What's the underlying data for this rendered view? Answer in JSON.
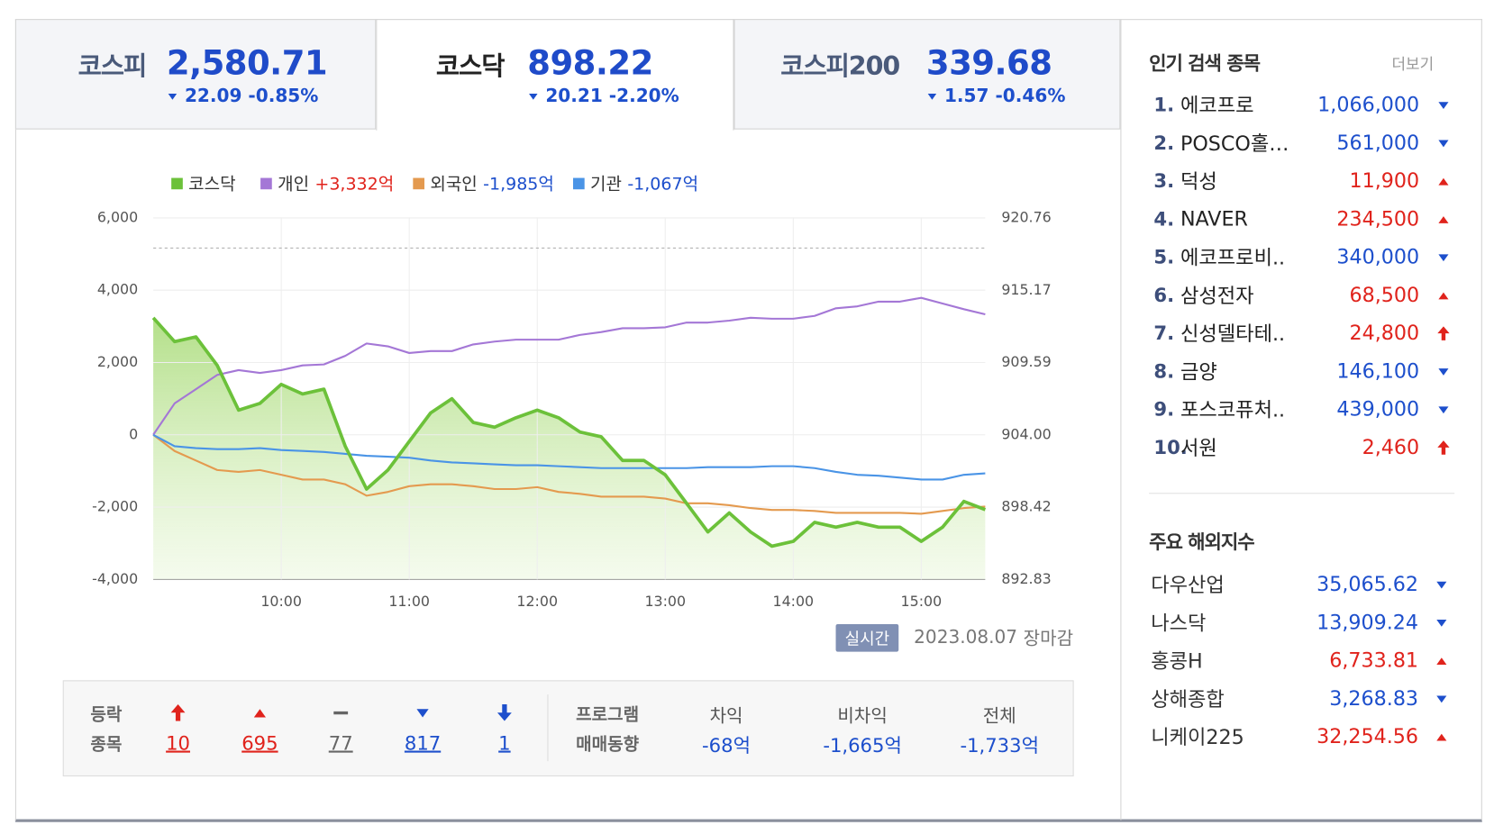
{
  "tabs": [
    {
      "name": "코스피",
      "value": "2,580.71",
      "change": "22.09 -0.85%",
      "direction": "down",
      "active": false
    },
    {
      "name": "코스닥",
      "value": "898.22",
      "change": "20.21 -2.20%",
      "direction": "down",
      "active": true
    },
    {
      "name": "코스피200",
      "value": "339.68",
      "change": "1.57 -0.46%",
      "direction": "down",
      "active": false
    }
  ],
  "chart_data": {
    "type": "line",
    "grid": true,
    "x": [
      "09:00",
      "09:10",
      "09:20",
      "09:30",
      "09:40",
      "09:50",
      "10:00",
      "10:10",
      "10:20",
      "10:30",
      "10:40",
      "10:50",
      "11:00",
      "11:10",
      "11:20",
      "11:30",
      "11:40",
      "11:50",
      "12:00",
      "12:10",
      "12:20",
      "12:30",
      "12:40",
      "12:50",
      "13:00",
      "13:10",
      "13:20",
      "13:30",
      "13:40",
      "13:50",
      "14:00",
      "14:10",
      "14:20",
      "14:30",
      "14:40",
      "14:50",
      "15:00",
      "15:10",
      "15:20",
      "15:30"
    ],
    "xlim": [
      "09:00",
      "15:30"
    ],
    "xticks": [
      "10:00",
      "11:00",
      "12:00",
      "13:00",
      "14:00",
      "15:00"
    ],
    "ylim": [
      -4000,
      6000
    ],
    "yticks": [
      {
        "value": -4000,
        "label": "-4,000"
      },
      {
        "value": -2000,
        "label": "-2,000"
      },
      0,
      {
        "value": 2000,
        "label": "2,000"
      },
      {
        "value": 4000,
        "label": "4,000"
      },
      {
        "value": 6000,
        "label": "6,000"
      }
    ],
    "y2lim": [
      892.83,
      920.76
    ],
    "y2ticks": [
      892.83,
      898.42,
      {
        "value": 904,
        "label": "904.00"
      },
      909.59,
      915.17,
      920.76
    ],
    "reference_line": 918.43,
    "series": [
      {
        "name": "코스닥",
        "color": "#6cc13a",
        "axis": "y2",
        "area": true,
        "values": [
          913.04,
          911.2,
          911.57,
          909.36,
          905.91,
          906.43,
          907.9,
          907.16,
          907.53,
          903.12,
          899.81,
          901.28,
          903.49,
          905.69,
          906.79,
          904.96,
          904.59,
          905.32,
          905.91,
          905.32,
          904.22,
          903.85,
          902.02,
          902.02,
          900.91,
          898.71,
          896.5,
          897.97,
          896.5,
          895.4,
          895.77,
          897.24,
          896.87,
          897.24,
          896.87,
          896.87,
          895.77,
          896.87,
          898.86,
          898.22
        ]
      },
      {
        "name": "개인",
        "color": "#a477d6",
        "legend_value": "+3,332억",
        "values": [
          0,
          868,
          1263,
          1658,
          1789,
          1711,
          1789,
          1921,
          1947,
          2184,
          2526,
          2447,
          2263,
          2316,
          2316,
          2500,
          2579,
          2632,
          2632,
          2632,
          2763,
          2842,
          2947,
          2947,
          2974,
          3105,
          3105,
          3158,
          3237,
          3211,
          3211,
          3289,
          3500,
          3553,
          3684,
          3684,
          3789,
          3632,
          3474,
          3332
        ]
      },
      {
        "name": "외국인",
        "color": "#e49a4f",
        "legend_value": "-1,985억",
        "values": [
          0,
          -447,
          -711,
          -974,
          -1026,
          -974,
          -1105,
          -1237,
          -1237,
          -1368,
          -1684,
          -1579,
          -1421,
          -1368,
          -1368,
          -1421,
          -1500,
          -1500,
          -1447,
          -1579,
          -1632,
          -1711,
          -1711,
          -1711,
          -1763,
          -1895,
          -1895,
          -1947,
          -2026,
          -2079,
          -2079,
          -2105,
          -2158,
          -2158,
          -2158,
          -2158,
          -2184,
          -2105,
          -2026,
          -1985
        ]
      },
      {
        "name": "기관",
        "color": "#4a94e6",
        "legend_value": "-1,067억",
        "values": [
          0,
          -316,
          -368,
          -395,
          -395,
          -368,
          -421,
          -447,
          -474,
          -526,
          -579,
          -605,
          -632,
          -711,
          -763,
          -789,
          -816,
          -842,
          -842,
          -868,
          -895,
          -921,
          -921,
          -921,
          -921,
          -921,
          -895,
          -895,
          -895,
          -868,
          -868,
          -921,
          -1026,
          -1105,
          -1132,
          -1184,
          -1237,
          -1237,
          -1105,
          -1067
        ]
      }
    ]
  },
  "status": {
    "badge": "실시간",
    "date": "2023.08.07",
    "state": "장마감"
  },
  "breadth": {
    "title": [
      "등락",
      "종목"
    ],
    "items": [
      {
        "direction": "upper_limit",
        "count": "10"
      },
      {
        "direction": "up",
        "count": "695"
      },
      {
        "direction": "flat",
        "count": "77"
      },
      {
        "direction": "down",
        "count": "817"
      },
      {
        "direction": "lower_limit",
        "count": "1"
      }
    ]
  },
  "program": {
    "title": [
      "프로그램",
      "매매동향"
    ],
    "items": [
      {
        "label": "차익",
        "value": "-68억"
      },
      {
        "label": "비차익",
        "value": "-1,665억"
      },
      {
        "label": "전체",
        "value": "-1,733억"
      }
    ]
  },
  "popular": {
    "title": "인기 검색 종목",
    "more": "더보기",
    "items": [
      {
        "rank": "1.",
        "name": "에코프로",
        "price": "1,066,000",
        "direction": "down"
      },
      {
        "rank": "2.",
        "name": "POSCO홀…",
        "price": "561,000",
        "direction": "down"
      },
      {
        "rank": "3.",
        "name": "덕성",
        "price": "11,900",
        "direction": "up"
      },
      {
        "rank": "4.",
        "name": "NAVER",
        "price": "234,500",
        "direction": "up"
      },
      {
        "rank": "5.",
        "name": "에코프로비..",
        "price": "340,000",
        "direction": "down"
      },
      {
        "rank": "6.",
        "name": "삼성전자",
        "price": "68,500",
        "direction": "up"
      },
      {
        "rank": "7.",
        "name": "신성델타테..",
        "price": "24,800",
        "direction": "upper_limit"
      },
      {
        "rank": "8.",
        "name": "금양",
        "price": "146,100",
        "direction": "down"
      },
      {
        "rank": "9.",
        "name": "포스코퓨처..",
        "price": "439,000",
        "direction": "down"
      },
      {
        "rank": "10.",
        "name": "서원",
        "price": "2,460",
        "direction": "upper_limit"
      }
    ]
  },
  "overseas": {
    "title": "주요 해외지수",
    "items": [
      {
        "name": "다우산업",
        "value": "35,065.62",
        "direction": "down"
      },
      {
        "name": "나스닥",
        "value": "13,909.24",
        "direction": "down"
      },
      {
        "name": "홍콩H",
        "value": "6,733.81",
        "direction": "up"
      },
      {
        "name": "상해종합",
        "value": "3,268.83",
        "direction": "down"
      },
      {
        "name": "니케이225",
        "value": "32,254.56",
        "direction": "up"
      }
    ]
  }
}
